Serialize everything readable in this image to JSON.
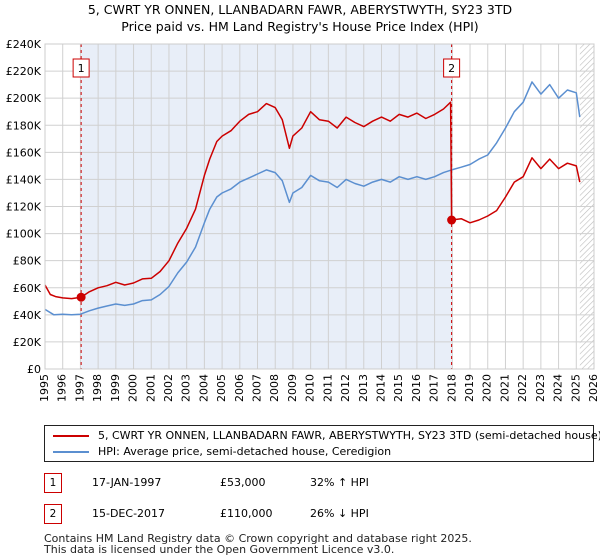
{
  "title_line1": "5, CWRT YR ONNEN, LLANBADARN FAWR, ABERYSTWYTH, SY23 3TD",
  "title_line2": "Price paid vs. HM Land Registry's House Price Index (HPI)",
  "colors": {
    "property": "#cc0000",
    "hpi": "#5b8fd0",
    "shade": "#e8eef8",
    "grid": "#d0d0d0"
  },
  "chart_data": {
    "type": "line",
    "ylim": [
      0,
      240000
    ],
    "xlim": [
      1995,
      2026
    ],
    "yticks": [
      {
        "value": 0,
        "label": "£0"
      },
      {
        "value": 20000,
        "label": "£20K"
      },
      {
        "value": 40000,
        "label": "£40K"
      },
      {
        "value": 60000,
        "label": "£60K"
      },
      {
        "value": 80000,
        "label": "£80K"
      },
      {
        "value": 100000,
        "label": "£100K"
      },
      {
        "value": 120000,
        "label": "£120K"
      },
      {
        "value": 140000,
        "label": "£140K"
      },
      {
        "value": 160000,
        "label": "£160K"
      },
      {
        "value": 180000,
        "label": "£180K"
      },
      {
        "value": 200000,
        "label": "£200K"
      },
      {
        "value": 220000,
        "label": "£220K"
      },
      {
        "value": 240000,
        "label": "£240K"
      }
    ],
    "xticks": [
      "1995",
      "1996",
      "1997",
      "1998",
      "1999",
      "2000",
      "2001",
      "2002",
      "2003",
      "2004",
      "2005",
      "2006",
      "2007",
      "2008",
      "2009",
      "2010",
      "2011",
      "2012",
      "2013",
      "2014",
      "2015",
      "2016",
      "2017",
      "2018",
      "2019",
      "2020",
      "2021",
      "2022",
      "2023",
      "2024",
      "2025",
      "2026"
    ],
    "shaded_period": [
      1997.04,
      2017.96
    ],
    "hatched_from": 2025.2,
    "sales": [
      {
        "id": "1",
        "x": 1997.04,
        "y": 53000
      },
      {
        "id": "2",
        "x": 2017.96,
        "y": 110000
      }
    ],
    "series": [
      {
        "name": "5, CWRT YR ONNEN, LLANBADARN FAWR, ABERYSTWYTH, SY23 3TD (semi-detached house)",
        "color": "#cc0000",
        "points": [
          [
            1995.0,
            62000
          ],
          [
            1995.3,
            55000
          ],
          [
            1995.6,
            53500
          ],
          [
            1996.0,
            52500
          ],
          [
            1996.5,
            52000
          ],
          [
            1997.04,
            53000
          ],
          [
            1997.5,
            57000
          ],
          [
            1998.0,
            60000
          ],
          [
            1998.5,
            61500
          ],
          [
            1999.0,
            64000
          ],
          [
            1999.5,
            62000
          ],
          [
            2000.0,
            63500
          ],
          [
            2000.5,
            66500
          ],
          [
            2001.0,
            67000
          ],
          [
            2001.5,
            72000
          ],
          [
            2002.0,
            80000
          ],
          [
            2002.5,
            93000
          ],
          [
            2003.0,
            104000
          ],
          [
            2003.5,
            118000
          ],
          [
            2004.0,
            143000
          ],
          [
            2004.3,
            155000
          ],
          [
            2004.7,
            168000
          ],
          [
            2005.0,
            172000
          ],
          [
            2005.5,
            176000
          ],
          [
            2006.0,
            183000
          ],
          [
            2006.5,
            188000
          ],
          [
            2007.0,
            190000
          ],
          [
            2007.5,
            196000
          ],
          [
            2008.0,
            193000
          ],
          [
            2008.4,
            184000
          ],
          [
            2008.8,
            163000
          ],
          [
            2009.0,
            172000
          ],
          [
            2009.5,
            178000
          ],
          [
            2010.0,
            190000
          ],
          [
            2010.5,
            184000
          ],
          [
            2011.0,
            183000
          ],
          [
            2011.5,
            178000
          ],
          [
            2012.0,
            186000
          ],
          [
            2012.5,
            182000
          ],
          [
            2013.0,
            179000
          ],
          [
            2013.5,
            183000
          ],
          [
            2014.0,
            186000
          ],
          [
            2014.5,
            183000
          ],
          [
            2015.0,
            188000
          ],
          [
            2015.5,
            186000
          ],
          [
            2016.0,
            189000
          ],
          [
            2016.5,
            185000
          ],
          [
            2017.0,
            188000
          ],
          [
            2017.5,
            192000
          ],
          [
            2017.9,
            197000
          ],
          [
            2017.96,
            110000
          ],
          [
            2018.5,
            111000
          ],
          [
            2019.0,
            108000
          ],
          [
            2019.5,
            110000
          ],
          [
            2020.0,
            113000
          ],
          [
            2020.5,
            117000
          ],
          [
            2021.0,
            127000
          ],
          [
            2021.5,
            138000
          ],
          [
            2022.0,
            142000
          ],
          [
            2022.5,
            156000
          ],
          [
            2023.0,
            148000
          ],
          [
            2023.5,
            155000
          ],
          [
            2024.0,
            148000
          ],
          [
            2024.5,
            152000
          ],
          [
            2025.0,
            150000
          ],
          [
            2025.2,
            138000
          ]
        ]
      },
      {
        "name": "HPI: Average price, semi-detached house, Ceredigion",
        "color": "#5b8fd0",
        "points": [
          [
            1995.0,
            44000
          ],
          [
            1995.5,
            40000
          ],
          [
            1996.0,
            40500
          ],
          [
            1996.5,
            40000
          ],
          [
            1997.0,
            40500
          ],
          [
            1997.5,
            43000
          ],
          [
            1998.0,
            45000
          ],
          [
            1998.5,
            46500
          ],
          [
            1999.0,
            48000
          ],
          [
            1999.5,
            47000
          ],
          [
            2000.0,
            48000
          ],
          [
            2000.5,
            50500
          ],
          [
            2001.0,
            51000
          ],
          [
            2001.5,
            55000
          ],
          [
            2002.0,
            61000
          ],
          [
            2002.5,
            71000
          ],
          [
            2003.0,
            79000
          ],
          [
            2003.5,
            90000
          ],
          [
            2004.0,
            108000
          ],
          [
            2004.3,
            118000
          ],
          [
            2004.7,
            127000
          ],
          [
            2005.0,
            130000
          ],
          [
            2005.5,
            133000
          ],
          [
            2006.0,
            138000
          ],
          [
            2006.5,
            141000
          ],
          [
            2007.0,
            144000
          ],
          [
            2007.5,
            147000
          ],
          [
            2008.0,
            145000
          ],
          [
            2008.4,
            139000
          ],
          [
            2008.8,
            123000
          ],
          [
            2009.0,
            130000
          ],
          [
            2009.5,
            134000
          ],
          [
            2010.0,
            143000
          ],
          [
            2010.5,
            139000
          ],
          [
            2011.0,
            138000
          ],
          [
            2011.5,
            134000
          ],
          [
            2012.0,
            140000
          ],
          [
            2012.5,
            137000
          ],
          [
            2013.0,
            135000
          ],
          [
            2013.5,
            138000
          ],
          [
            2014.0,
            140000
          ],
          [
            2014.5,
            138000
          ],
          [
            2015.0,
            142000
          ],
          [
            2015.5,
            140000
          ],
          [
            2016.0,
            142000
          ],
          [
            2016.5,
            140000
          ],
          [
            2017.0,
            142000
          ],
          [
            2017.5,
            145000
          ],
          [
            2017.96,
            147000
          ],
          [
            2018.5,
            149000
          ],
          [
            2019.0,
            151000
          ],
          [
            2019.5,
            155000
          ],
          [
            2020.0,
            158000
          ],
          [
            2020.5,
            167000
          ],
          [
            2021.0,
            178000
          ],
          [
            2021.5,
            190000
          ],
          [
            2022.0,
            197000
          ],
          [
            2022.5,
            212000
          ],
          [
            2023.0,
            203000
          ],
          [
            2023.5,
            210000
          ],
          [
            2024.0,
            200000
          ],
          [
            2024.5,
            206000
          ],
          [
            2025.0,
            204000
          ],
          [
            2025.2,
            186000
          ]
        ]
      }
    ]
  },
  "legend": {
    "property_label": "5, CWRT YR ONNEN, LLANBADARN FAWR, ABERYSTWYTH, SY23 3TD (semi-detached house)",
    "hpi_label": "HPI: Average price, semi-detached house, Ceredigion"
  },
  "sales_table": [
    {
      "id": "1",
      "date": "17-JAN-1997",
      "price": "£53,000",
      "hpi": "32% ↑ HPI"
    },
    {
      "id": "2",
      "date": "15-DEC-2017",
      "price": "£110,000",
      "hpi": "26% ↓ HPI"
    }
  ],
  "footer_line1": "Contains HM Land Registry data © Crown copyright and database right 2025.",
  "footer_line2": "This data is licensed under the Open Government Licence v3.0."
}
